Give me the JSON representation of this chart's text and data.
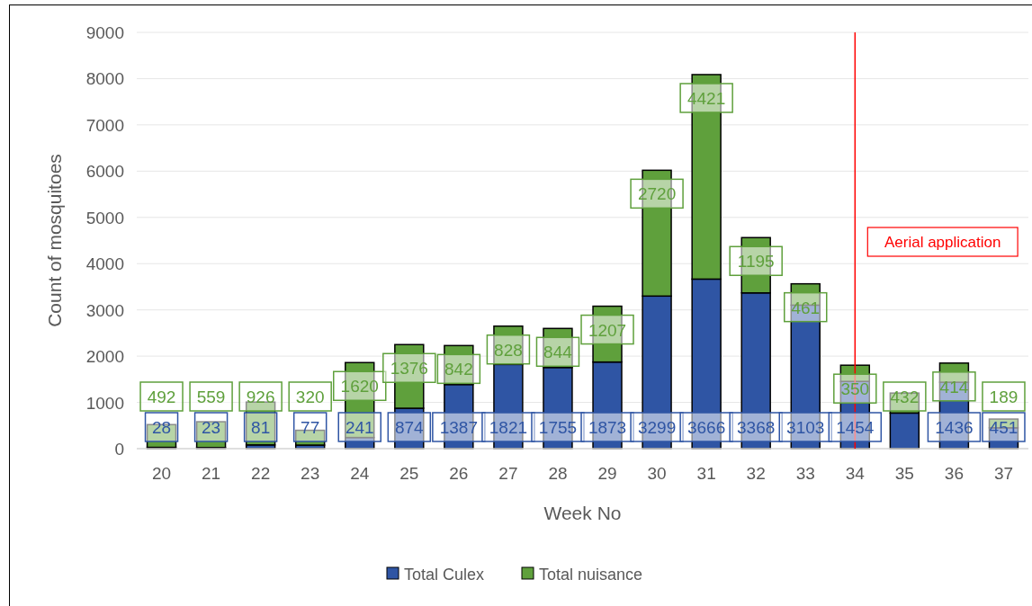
{
  "chart_data": {
    "type": "bar",
    "stacked": true,
    "xlabel": "Week No",
    "ylabel": "Count of mosquitoes",
    "categories": [
      "20",
      "21",
      "22",
      "23",
      "24",
      "25",
      "26",
      "27",
      "28",
      "29",
      "30",
      "31",
      "32",
      "33",
      "34",
      "35",
      "36",
      "37"
    ],
    "series": [
      {
        "name": "Total Culex",
        "color": "#2f55a4",
        "values": [
          28,
          23,
          81,
          77,
          241,
          874,
          1387,
          1821,
          1755,
          1873,
          3299,
          3666,
          3368,
          3103,
          1454,
          770,
          1436,
          451
        ],
        "value_labels": [
          "28",
          "23",
          "81",
          "77",
          "241",
          "874",
          "1387",
          "1821",
          "1755",
          "1873",
          "3299",
          "3666",
          "3368",
          "3103",
          "1454",
          null,
          "1436",
          "451"
        ]
      },
      {
        "name": "Total nuisance",
        "color": "#5fa03c",
        "values": [
          492,
          559,
          926,
          320,
          1620,
          1376,
          842,
          828,
          844,
          1207,
          2720,
          4421,
          1195,
          461,
          350,
          432,
          414,
          189
        ],
        "value_labels": [
          "492",
          "559",
          "926",
          "320",
          "1620",
          "1376",
          "842",
          "828",
          "844",
          "1207",
          "2720",
          "4421",
          "1195",
          "461",
          "350",
          "432",
          "414",
          "189"
        ]
      }
    ],
    "ylim": [
      0,
      9000
    ],
    "yticks": [
      0,
      1000,
      2000,
      3000,
      4000,
      5000,
      6000,
      7000,
      8000,
      9000
    ],
    "grid": "y",
    "legend": "bottom",
    "ref_lines": [
      {
        "axis": "x",
        "value": "34",
        "label": "Aerial application",
        "color": "#ff0000"
      }
    ]
  }
}
